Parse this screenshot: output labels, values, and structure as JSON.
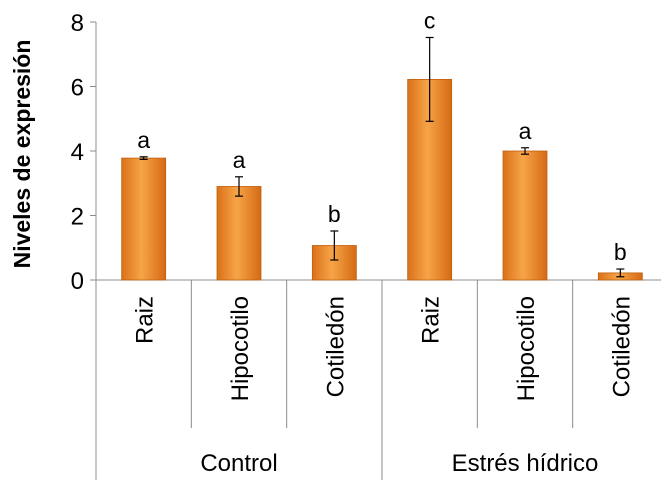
{
  "chart_data": {
    "type": "bar",
    "title": "",
    "xlabel": "",
    "ylabel": "Niveles de expresión",
    "ylim": [
      0,
      8
    ],
    "yticks": [
      0,
      2,
      4,
      6,
      8
    ],
    "grid": false,
    "legend": "none",
    "bar_color": "#F28C28",
    "categories": [
      "Raiz",
      "Hipocotilo",
      "Cotiledón",
      "Raiz",
      "Hipocotilo",
      "Cotiledón"
    ],
    "groups": [
      {
        "name": "Control",
        "categories": [
          "Raiz",
          "Hipocotilo",
          "Cotiledón"
        ]
      },
      {
        "name": "Estrés hídrico",
        "categories": [
          "Raiz",
          "Hipocotilo",
          "Cotiledón"
        ]
      }
    ],
    "values": [
      3.78,
      2.9,
      1.07,
      6.22,
      4.0,
      0.22
    ],
    "errors": [
      0.04,
      0.3,
      0.45,
      1.3,
      0.1,
      0.12
    ],
    "significance_letters": [
      "a",
      "a",
      "b",
      "c",
      "a",
      "b"
    ]
  }
}
